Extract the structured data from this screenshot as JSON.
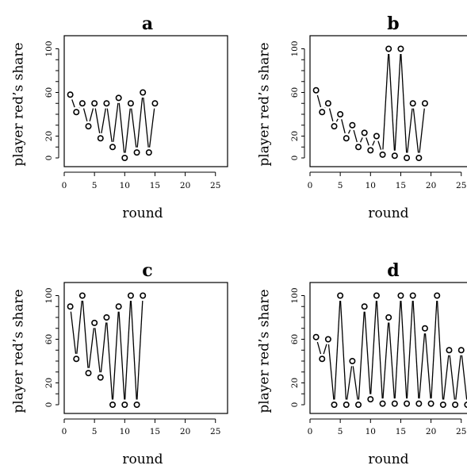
{
  "chart_data": [
    {
      "type": "line",
      "title": "a",
      "xlabel": "round",
      "ylabel": "player red’s share",
      "xlim": [
        0,
        27
      ],
      "ylim": [
        -8,
        112
      ],
      "xticks": [
        0,
        5,
        10,
        15,
        20,
        25
      ],
      "yticks": [
        0,
        20,
        60,
        100
      ],
      "grid": false,
      "series": [
        {
          "x": [
            1,
            2,
            3,
            4,
            5,
            6,
            7,
            8,
            9,
            10,
            11,
            12,
            13,
            14,
            15
          ],
          "values": [
            58,
            42,
            50,
            29,
            50,
            18,
            50,
            10,
            55,
            0,
            50,
            5,
            60,
            5,
            50
          ]
        }
      ]
    },
    {
      "type": "line",
      "title": "b",
      "xlabel": "round",
      "ylabel": "player red’s share",
      "xlim": [
        0,
        27
      ],
      "ylim": [
        -8,
        112
      ],
      "xticks": [
        0,
        5,
        10,
        15,
        20,
        25
      ],
      "yticks": [
        0,
        20,
        60,
        100
      ],
      "grid": false,
      "series": [
        {
          "x": [
            1,
            2,
            3,
            4,
            5,
            6,
            7,
            8,
            9,
            10,
            11,
            12,
            13,
            14,
            15,
            16,
            17,
            18,
            19
          ],
          "values": [
            62,
            42,
            50,
            29,
            40,
            18,
            30,
            10,
            23,
            7,
            20,
            3,
            100,
            2,
            100,
            0,
            50,
            0,
            50
          ]
        }
      ]
    },
    {
      "type": "line",
      "title": "c",
      "xlabel": "round",
      "ylabel": "player red’s share",
      "xlim": [
        0,
        27
      ],
      "ylim": [
        -8,
        112
      ],
      "xticks": [
        0,
        5,
        10,
        15,
        20,
        25
      ],
      "yticks": [
        0,
        20,
        60,
        100
      ],
      "grid": false,
      "series": [
        {
          "x": [
            1,
            2,
            3,
            4,
            5,
            6,
            7,
            8,
            9,
            10,
            11,
            12,
            13
          ],
          "values": [
            90,
            42,
            100,
            29,
            75,
            25,
            80,
            0,
            90,
            0,
            100,
            0,
            100
          ]
        }
      ]
    },
    {
      "type": "line",
      "title": "d",
      "xlabel": "round",
      "ylabel": "player red’s share",
      "xlim": [
        0,
        27
      ],
      "ylim": [
        -8,
        112
      ],
      "xticks": [
        0,
        5,
        10,
        15,
        20,
        25
      ],
      "yticks": [
        0,
        20,
        60,
        100
      ],
      "grid": false,
      "series": [
        {
          "x": [
            1,
            2,
            3,
            4,
            5,
            6,
            7,
            8,
            9,
            10,
            11,
            12,
            13,
            14,
            15,
            16,
            17,
            18,
            19,
            20,
            21,
            22,
            23,
            24,
            25,
            26
          ],
          "values": [
            62,
            42,
            60,
            0,
            100,
            0,
            40,
            0,
            90,
            5,
            100,
            1,
            80,
            1,
            100,
            1,
            100,
            1,
            70,
            1,
            100,
            0,
            50,
            0,
            50,
            0
          ]
        }
      ]
    }
  ]
}
